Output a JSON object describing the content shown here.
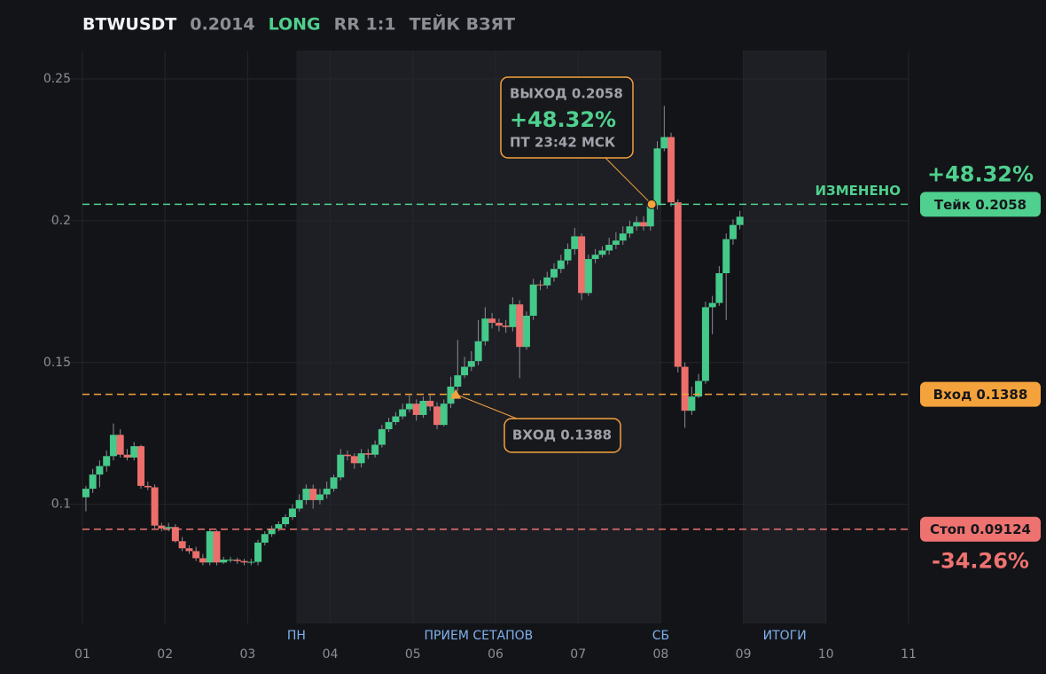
{
  "chart_data": {
    "type": "candlestick",
    "title": "BTWUSDT",
    "last": 0.2014,
    "side": "LONG",
    "rr": "RR 1:1",
    "status": "ТЕЙК ВЗЯТ",
    "x": [
      1.042,
      1.125,
      1.208,
      1.292,
      1.375,
      1.458,
      1.542,
      1.625,
      1.708,
      1.792,
      1.875,
      1.958,
      2.042,
      2.125,
      2.208,
      2.292,
      2.375,
      2.458,
      2.542,
      2.625,
      2.708,
      2.792,
      2.875,
      2.958,
      3.042,
      3.125,
      3.208,
      3.292,
      3.375,
      3.458,
      3.542,
      3.625,
      3.708,
      3.792,
      3.875,
      3.958,
      4.042,
      4.125,
      4.208,
      4.292,
      4.375,
      4.458,
      4.542,
      4.625,
      4.708,
      4.792,
      4.875,
      4.958,
      5.042,
      5.125,
      5.208,
      5.292,
      5.375,
      5.458,
      5.542,
      5.625,
      5.708,
      5.792,
      5.875,
      5.958,
      6.042,
      6.125,
      6.208,
      6.292,
      6.375,
      6.458,
      6.542,
      6.625,
      6.708,
      6.792,
      6.875,
      6.958,
      7.042,
      7.125,
      7.208,
      7.292,
      7.375,
      7.458,
      7.542,
      7.625,
      7.708,
      7.792,
      7.875,
      7.958,
      8.042,
      8.125,
      8.208,
      8.292,
      8.375,
      8.458,
      8.542,
      8.625,
      8.708,
      8.792,
      8.875,
      8.958
    ],
    "open": [
      0.1025,
      0.1055,
      0.1105,
      0.1135,
      0.117,
      0.1245,
      0.1175,
      0.1165,
      0.1205,
      0.1065,
      0.106,
      0.0925,
      0.0915,
      0.092,
      0.087,
      0.0845,
      0.0835,
      0.081,
      0.0795,
      0.0905,
      0.0795,
      0.0805,
      0.0805,
      0.08,
      0.0795,
      0.0797,
      0.0865,
      0.0895,
      0.0915,
      0.093,
      0.0955,
      0.0985,
      0.1015,
      0.1055,
      0.1015,
      0.1035,
      0.1055,
      0.1095,
      0.1175,
      0.117,
      0.1145,
      0.118,
      0.1175,
      0.121,
      0.1265,
      0.129,
      0.131,
      0.1335,
      0.1355,
      0.1315,
      0.1365,
      0.1345,
      0.128,
      0.1355,
      0.1415,
      0.1455,
      0.1485,
      0.1505,
      0.1575,
      0.1655,
      0.164,
      0.163,
      0.1625,
      0.1705,
      0.1555,
      0.1665,
      0.1775,
      0.1772,
      0.18,
      0.183,
      0.186,
      0.19,
      0.1945,
      0.1745,
      0.1865,
      0.188,
      0.1895,
      0.1915,
      0.193,
      0.1955,
      0.198,
      0.1995,
      0.198,
      0.2055,
      0.2255,
      0.2295,
      0.2065,
      0.1485,
      0.133,
      0.138,
      0.1435,
      0.1695,
      0.171,
      0.1815,
      0.1935,
      0.1985
    ],
    "high": [
      0.1065,
      0.1125,
      0.1155,
      0.119,
      0.1285,
      0.1265,
      0.1195,
      0.122,
      0.121,
      0.108,
      0.107,
      0.0935,
      0.0935,
      0.093,
      0.0885,
      0.0855,
      0.085,
      0.0825,
      0.0915,
      0.091,
      0.0815,
      0.0815,
      0.0812,
      0.0808,
      0.0808,
      0.0875,
      0.0905,
      0.0925,
      0.094,
      0.0965,
      0.1,
      0.1035,
      0.107,
      0.107,
      0.1055,
      0.108,
      0.1105,
      0.1195,
      0.119,
      0.118,
      0.1195,
      0.1195,
      0.1225,
      0.128,
      0.1305,
      0.1325,
      0.1355,
      0.1385,
      0.137,
      0.138,
      0.1385,
      0.136,
      0.137,
      0.145,
      0.158,
      0.152,
      0.154,
      0.165,
      0.1695,
      0.1675,
      0.1655,
      0.165,
      0.173,
      0.172,
      0.168,
      0.1795,
      0.179,
      0.182,
      0.185,
      0.188,
      0.192,
      0.1975,
      0.1955,
      0.188,
      0.19,
      0.191,
      0.194,
      0.196,
      0.198,
      0.2,
      0.2015,
      0.2015,
      0.207,
      0.228,
      0.2405,
      0.231,
      0.2075,
      0.15,
      0.1415,
      0.146,
      0.1715,
      0.1735,
      0.184,
      0.1955,
      0.2005,
      0.2035
    ],
    "low": [
      0.0975,
      0.104,
      0.106,
      0.1115,
      0.1155,
      0.1165,
      0.1155,
      0.1155,
      0.1055,
      0.105,
      0.0915,
      0.0905,
      0.0905,
      0.0865,
      0.0835,
      0.0825,
      0.08,
      0.0785,
      0.0785,
      0.0785,
      0.079,
      0.0795,
      0.079,
      0.0785,
      0.0785,
      0.0785,
      0.0855,
      0.0885,
      0.0905,
      0.092,
      0.0945,
      0.0975,
      0.1,
      0.0985,
      0.1,
      0.102,
      0.1045,
      0.1085,
      0.1155,
      0.1125,
      0.113,
      0.116,
      0.1165,
      0.12,
      0.1255,
      0.128,
      0.13,
      0.1325,
      0.1295,
      0.1305,
      0.133,
      0.1265,
      0.1275,
      0.134,
      0.14,
      0.1445,
      0.147,
      0.149,
      0.156,
      0.162,
      0.161,
      0.1605,
      0.161,
      0.1445,
      0.1545,
      0.165,
      0.1755,
      0.176,
      0.1785,
      0.1815,
      0.1845,
      0.188,
      0.172,
      0.1735,
      0.185,
      0.187,
      0.188,
      0.19,
      0.1915,
      0.194,
      0.1965,
      0.1965,
      0.1965,
      0.204,
      0.2245,
      0.205,
      0.1465,
      0.127,
      0.1315,
      0.1375,
      0.1425,
      0.16,
      0.17,
      0.165,
      0.1915,
      0.197
    ],
    "close": [
      0.1055,
      0.1105,
      0.1135,
      0.117,
      0.1245,
      0.1175,
      0.1165,
      0.1205,
      0.1065,
      0.106,
      0.0925,
      0.0915,
      0.092,
      0.087,
      0.0845,
      0.0835,
      0.081,
      0.0795,
      0.0905,
      0.0795,
      0.0805,
      0.0805,
      0.08,
      0.0795,
      0.0797,
      0.0865,
      0.0895,
      0.0915,
      0.093,
      0.0955,
      0.0985,
      0.1015,
      0.1055,
      0.1015,
      0.1035,
      0.1055,
      0.1095,
      0.1175,
      0.117,
      0.1145,
      0.118,
      0.1175,
      0.121,
      0.1265,
      0.129,
      0.131,
      0.1335,
      0.1355,
      0.1315,
      0.1365,
      0.1345,
      0.128,
      0.1355,
      0.1415,
      0.1455,
      0.1485,
      0.1505,
      0.1575,
      0.1655,
      0.164,
      0.163,
      0.1625,
      0.1705,
      0.1555,
      0.1665,
      0.1775,
      0.1772,
      0.18,
      0.183,
      0.186,
      0.19,
      0.1945,
      0.1745,
      0.1865,
      0.188,
      0.1895,
      0.1915,
      0.193,
      0.1955,
      0.198,
      0.1995,
      0.198,
      0.2055,
      0.2255,
      0.2295,
      0.2065,
      0.1485,
      0.133,
      0.138,
      0.1435,
      0.1695,
      0.171,
      0.1815,
      0.1935,
      0.1985,
      0.2014
    ],
    "up_color": "#45c98a",
    "down_color": "#ec6f6b",
    "xlim": [
      1,
      11
    ],
    "xticks": [
      {
        "value": 1,
        "label": "01"
      },
      {
        "value": 2,
        "label": "02"
      },
      {
        "value": 3,
        "label": "03"
      },
      {
        "value": 4,
        "label": "04"
      },
      {
        "value": 5,
        "label": "05"
      },
      {
        "value": 6,
        "label": "06"
      },
      {
        "value": 7,
        "label": "07"
      },
      {
        "value": 8,
        "label": "08"
      },
      {
        "value": 9,
        "label": "09"
      },
      {
        "value": 10,
        "label": "10"
      },
      {
        "value": 11,
        "label": "11"
      }
    ],
    "ylim": [
      0.058,
      0.26
    ],
    "yticks": [
      0.1,
      0.15,
      0.2,
      0.25
    ],
    "grid": true,
    "levels": [
      {
        "label": "Тейк 0.2058",
        "value": 0.2058,
        "color": "#4fd08e",
        "note": "ИЗМЕНЕНО",
        "change": "+48.32%"
      },
      {
        "label": "Вход 0.1388",
        "value": 0.1388,
        "color": "#f4a23c"
      },
      {
        "label": "Стоп 0.09124",
        "value": 0.09124,
        "color": "#ee7370",
        "change": "-34.26%"
      }
    ],
    "zones": [
      {
        "from": 3.59,
        "to": 8,
        "label": "ПРИЕМ СЕТАПОВ",
        "start_label": "ПН",
        "end_label": "СБ"
      },
      {
        "from": 9,
        "to": 10,
        "label": "ИТОГИ"
      }
    ],
    "exit": {
      "x": 7.89,
      "y": 0.2058,
      "label": "ВЫХОД 0.2058",
      "change": "+48.32%",
      "time": "ПТ 23:42 МСК"
    },
    "entry": {
      "x": 5.52,
      "y": 0.1388,
      "label": "ВХОД 0.1388"
    }
  }
}
